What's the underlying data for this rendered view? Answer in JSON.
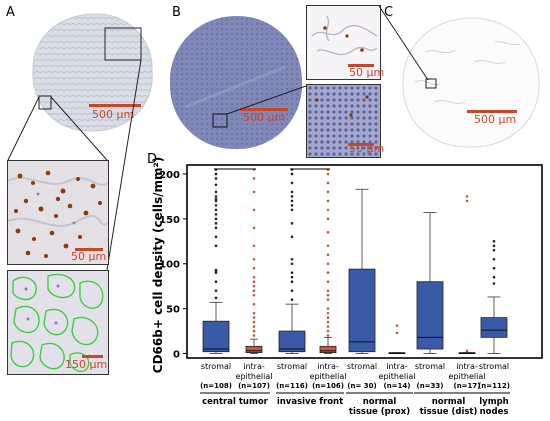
{
  "panels": {
    "A": {
      "letter": "A",
      "scale_main": "500 µm",
      "scale_zoom1": "50 µm",
      "scale_zoom2": "150 µm"
    },
    "B": {
      "letter": "B",
      "scale_main": "500 µm",
      "scale_top": "50 µm",
      "scale_bottom": "50 µm"
    },
    "C": {
      "letter": "C",
      "scale_main": "500 µm"
    },
    "D": {
      "letter": "D"
    }
  },
  "colors": {
    "stromal": "#3a5aa8",
    "intra_epithelial": "#d0553a",
    "scalebar": "#c8462a"
  },
  "chart_data": {
    "type": "box",
    "title": "",
    "ylabel": "CD66b+ cell density (cells/mm²)",
    "ylim": [
      -5,
      210
    ],
    "yticks": [
      0,
      50,
      100,
      150,
      200
    ],
    "categories": [
      {
        "label": "stromal",
        "n": "(n=108)",
        "group": "central tumor",
        "type": "stromal",
        "whislo": 0,
        "q1": 2,
        "med": 5,
        "q3": 36,
        "whishi": 57,
        "fliers": [
          62,
          70,
          80,
          90,
          92,
          93,
          120,
          130,
          140,
          145,
          150,
          155,
          160,
          165,
          170,
          172,
          175,
          180,
          188,
          195,
          200,
          205
        ]
      },
      {
        "label": "intra-\nepithelial",
        "n": "(n=107)",
        "group": "central tumor",
        "type": "intra",
        "whislo": 0,
        "q1": 1,
        "med": 3,
        "q3": 8,
        "whishi": 16,
        "fliers": [
          20,
          25,
          30,
          35,
          40,
          45,
          55,
          65,
          70,
          75,
          80,
          85,
          95,
          105,
          120,
          140,
          160,
          180,
          195,
          205
        ]
      },
      {
        "label": "stromal",
        "n": "(n=116)",
        "group": "invasive front",
        "type": "stromal",
        "whislo": 0,
        "q1": 2,
        "med": 5,
        "q3": 25,
        "whishi": 55,
        "fliers": [
          60,
          70,
          80,
          85,
          90,
          100,
          105,
          130,
          145,
          160,
          165,
          170,
          175,
          180,
          190,
          200,
          205
        ]
      },
      {
        "label": "intra-\nepithelial",
        "n": "(n=106)",
        "group": "invasive front",
        "type": "intra",
        "whislo": 0,
        "q1": 1,
        "med": 3,
        "q3": 8,
        "whishi": 18,
        "fliers": [
          20,
          25,
          30,
          35,
          40,
          45,
          50,
          60,
          65,
          70,
          80,
          90,
          100,
          110,
          120,
          135,
          150,
          160,
          170,
          180,
          190,
          200,
          205
        ]
      },
      {
        "label": "stromal",
        "n": "(n= 30)",
        "group": "normal\ntissue (prox)",
        "type": "stromal",
        "whislo": 0,
        "q1": 2,
        "med": 13,
        "q3": 94,
        "whishi": 183,
        "fliers": []
      },
      {
        "label": "intra-\nepithelial",
        "n": "(n=14)",
        "group": "normal\ntissue (prox)",
        "type": "intra",
        "whislo": 0,
        "q1": 0,
        "med": 0,
        "q3": 1,
        "whishi": 1,
        "fliers": [
          23,
          31
        ]
      },
      {
        "label": "stromal",
        "n": "(n=33)",
        "group": "normal\ntissue (dist)",
        "type": "stromal",
        "whislo": 0,
        "q1": 5,
        "med": 18,
        "q3": 80,
        "whishi": 157,
        "fliers": []
      },
      {
        "label": "intra-\nepithelial",
        "n": "(n=17)",
        "group": "normal\ntissue (dist)",
        "type": "intra",
        "whislo": 0,
        "q1": 0,
        "med": 0,
        "q3": 1,
        "whishi": 1,
        "fliers": [
          3,
          170,
          175
        ]
      },
      {
        "label": "stromal",
        "n": "(n=112)",
        "group": "lymph\nnodes",
        "type": "stromal",
        "whislo": 0,
        "q1": 18,
        "med": 26,
        "q3": 40,
        "whishi": 63,
        "fliers": [
          78,
          85,
          95,
          105,
          115,
          120,
          125
        ]
      }
    ],
    "groups": [
      "central tumor",
      "invasive front",
      "normal\ntissue (prox)",
      "normal\ntissue (dist)",
      "lymph\nnodes"
    ]
  }
}
